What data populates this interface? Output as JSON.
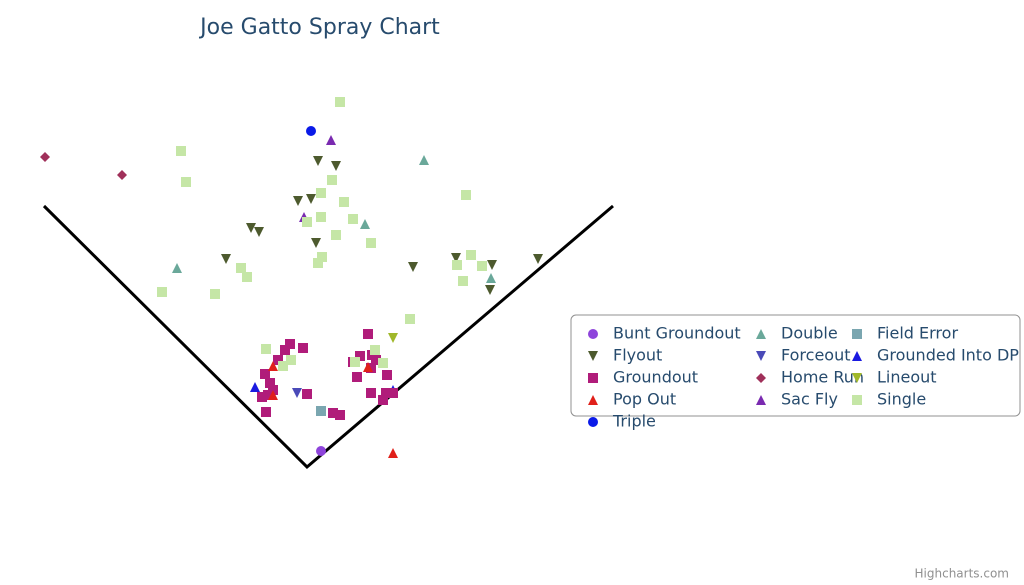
{
  "chart_data": {
    "type": "scatter",
    "title": "Joe Gatto Spray Chart",
    "credit": "Highcharts.com",
    "xlim": [
      -300,
      320
    ],
    "ylim": [
      -20,
      380
    ],
    "series": [
      {
        "name": "Bunt Groundout",
        "color": "#8e44db",
        "marker": "circle",
        "x": [
          14
        ],
        "values": [
          16
        ]
      },
      {
        "name": "Double",
        "color": "#6aa89a",
        "marker": "triangle",
        "x": [
          117,
          -130,
          58,
          184
        ],
        "values": [
          307,
          199,
          243,
          189
        ]
      },
      {
        "name": "Field Error",
        "color": "#7aa6b0",
        "marker": "square",
        "x": [
          14
        ],
        "values": [
          56
        ]
      },
      {
        "name": "Flyout",
        "color": "#4d5a2e",
        "marker": "triangle-down",
        "x": [
          11,
          29,
          -9,
          4,
          -56,
          -48,
          -81,
          9,
          106,
          149,
          185,
          231,
          183
        ],
        "values": [
          306,
          301,
          266,
          268,
          239,
          235,
          208,
          224,
          200,
          209,
          202,
          208,
          177
        ]
      },
      {
        "name": "Forceout",
        "color": "#4a4ab8",
        "marker": "triangle-down",
        "x": [
          -10
        ],
        "values": [
          74
        ]
      },
      {
        "name": "Grounded Into DP",
        "color": "#1a1ae0",
        "marker": "triangle",
        "x": [
          -52,
          86
        ],
        "values": [
          80,
          77
        ]
      },
      {
        "name": "Groundout",
        "color": "#b01c7a",
        "marker": "square",
        "x": [
          -17,
          -22,
          -4,
          -29,
          -42,
          -37,
          -39,
          -45,
          -34,
          -41,
          0,
          26,
          33,
          61,
          53,
          65,
          69,
          46,
          50,
          64,
          80,
          64,
          76,
          86,
          79
        ],
        "values": [
          123,
          117,
          119,
          107,
          93,
          84,
          72,
          70,
          77,
          55,
          73,
          54,
          52,
          133,
          111,
          112,
          107,
          105,
          90,
          99,
          92,
          74,
          67,
          74,
          74
        ]
      },
      {
        "name": "Home Run",
        "color": "#a0305a",
        "marker": "diamond",
        "x": [
          -262,
          -185
        ],
        "values": [
          310,
          292
        ]
      },
      {
        "name": "Lineout",
        "color": "#a0b82a",
        "marker": "triangle-down",
        "x": [
          86
        ],
        "values": [
          129
        ]
      },
      {
        "name": "Pop Out",
        "color": "#e0201a",
        "marker": "triangle",
        "x": [
          86,
          -34,
          61,
          -34
        ],
        "values": [
          14,
          101,
          100,
          72
        ]
      },
      {
        "name": "Sac Fly",
        "color": "#7a2ab0",
        "marker": "triangle",
        "x": [
          24,
          -3
        ],
        "values": [
          327,
          250
        ]
      },
      {
        "name": "Single",
        "color": "#c5e6a6",
        "marker": "square",
        "x": [
          33,
          -126,
          -121,
          25,
          14,
          37,
          0,
          14,
          46,
          29,
          64,
          15,
          11,
          159,
          164,
          150,
          175,
          156,
          -66,
          -60,
          -145,
          -92,
          103,
          -41,
          -16,
          -24,
          68,
          48,
          76
        ],
        "values": [
          365,
          316,
          285,
          287,
          274,
          265,
          245,
          250,
          248,
          232,
          224,
          210,
          204,
          272,
          212,
          202,
          201,
          186,
          199,
          190,
          175,
          173,
          148,
          118,
          107,
          101,
          117,
          105,
          104
        ]
      },
      {
        "name": "Triple",
        "color": "#0a1ae8",
        "marker": "circle",
        "x": [
          4
        ],
        "values": [
          336
        ]
      }
    ]
  }
}
